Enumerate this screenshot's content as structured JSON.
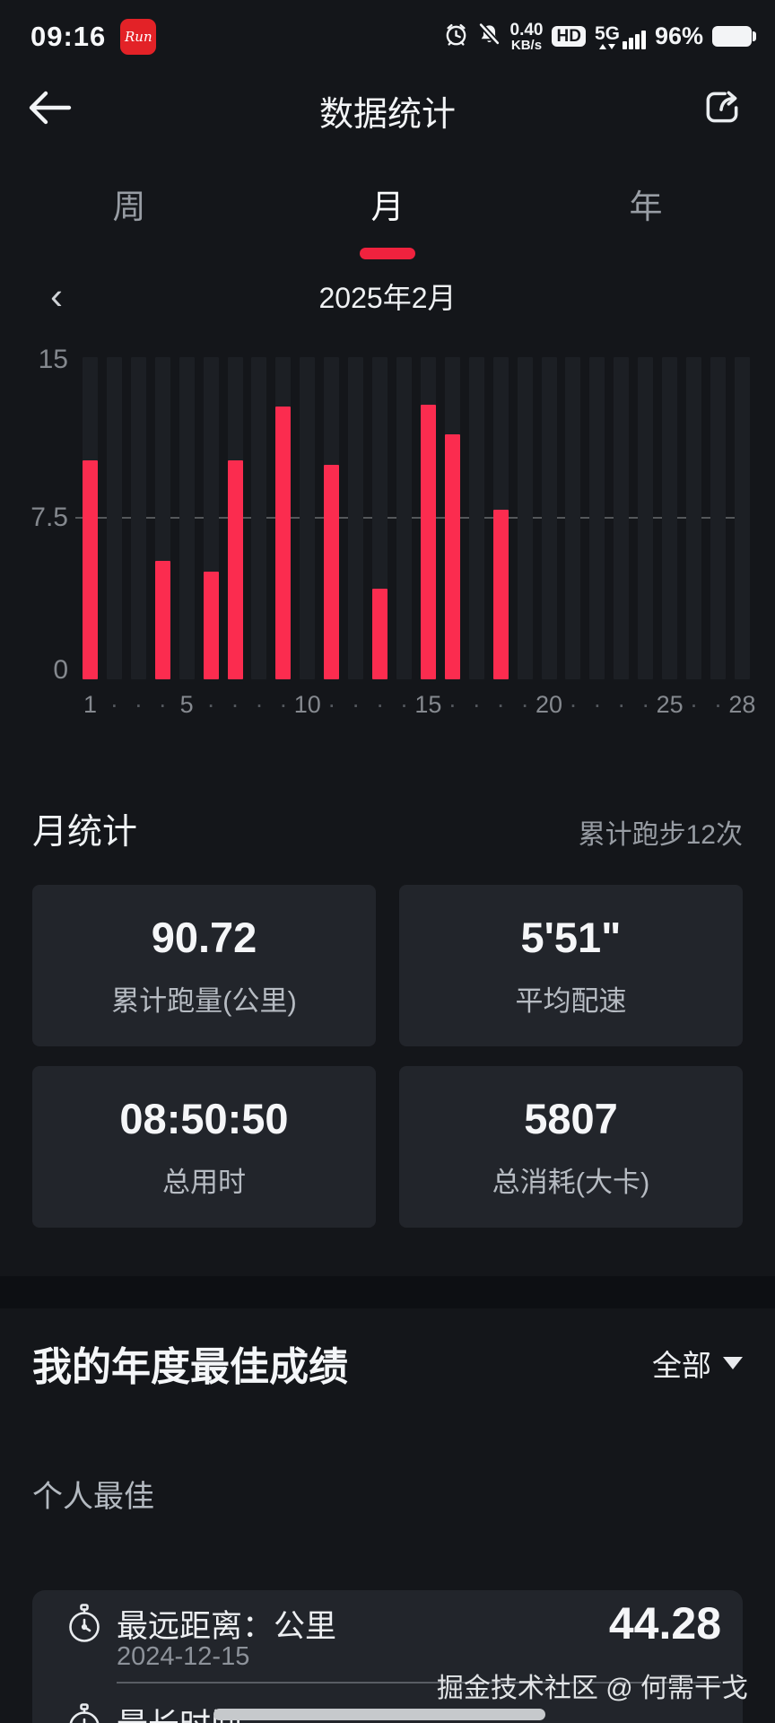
{
  "status_bar": {
    "time": "09:16",
    "app_badge": "Run",
    "net_speed_value": "0.40",
    "net_speed_unit": "KB/s",
    "hd_label": "HD",
    "network_type": "5G",
    "battery_percent": "96%",
    "icons": [
      "alarm-clock-icon",
      "bell-muted-icon",
      "signal-bars-icon",
      "battery-icon"
    ]
  },
  "header": {
    "title": "数据统计"
  },
  "tabs": [
    {
      "id": "week",
      "label": "周",
      "active": false
    },
    {
      "id": "month",
      "label": "月",
      "active": true
    },
    {
      "id": "year",
      "label": "年",
      "active": false
    }
  ],
  "period": {
    "label": "2025年2月",
    "prev_arrow": "‹"
  },
  "chart_data": {
    "type": "bar",
    "title": "",
    "xlabel": "",
    "ylabel": "",
    "x": [
      1,
      2,
      3,
      4,
      5,
      6,
      7,
      8,
      9,
      10,
      11,
      12,
      13,
      14,
      15,
      16,
      17,
      18,
      19,
      20,
      21,
      22,
      23,
      24,
      25,
      26,
      27,
      28
    ],
    "values": [
      10.2,
      0,
      0,
      5.5,
      0,
      5.0,
      10.2,
      0,
      12.7,
      0,
      10.0,
      0,
      4.2,
      0,
      12.8,
      11.4,
      0,
      7.9,
      0,
      0,
      0,
      0,
      0,
      0,
      0,
      0,
      0,
      0
    ],
    "ylim": [
      0,
      15
    ],
    "yticks": [
      0,
      7.5,
      15
    ],
    "ytick_labels": [
      "0",
      "7.5",
      "15"
    ],
    "xtick_days": [
      1,
      5,
      10,
      15,
      20,
      25,
      28
    ],
    "bar_color": "#fb2c4f",
    "placeholder_color": "#1c1f24",
    "grid": "horizontal line at 7.5 only",
    "legend": "none"
  },
  "month_stats": {
    "title": "月统计",
    "summary": "累计跑步12次",
    "cards": [
      {
        "value": "90.72",
        "label": "累计跑量(公里)"
      },
      {
        "value": "5'51\"",
        "label": "平均配速"
      },
      {
        "value": "08:50:50",
        "label": "总用时"
      },
      {
        "value": "5807",
        "label": "总消耗(大卡)"
      }
    ]
  },
  "annual_best": {
    "title": "我的年度最佳成绩",
    "filter_label": "全部"
  },
  "personal_best": {
    "title": "个人最佳",
    "items": [
      {
        "icon": "medal-stopwatch-icon",
        "title": "最远距离：公里",
        "date": "2024-12-15",
        "value": "44.28"
      },
      {
        "icon": "medal-stopwatch-icon",
        "title": "最长时间"
      }
    ]
  },
  "watermark": "掘金技术社区 @ 何需干戈",
  "colors": {
    "accent_red": "#f0223e",
    "bar_red": "#fb2c4f",
    "background": "#14161a",
    "card_bg": "#22252b"
  }
}
